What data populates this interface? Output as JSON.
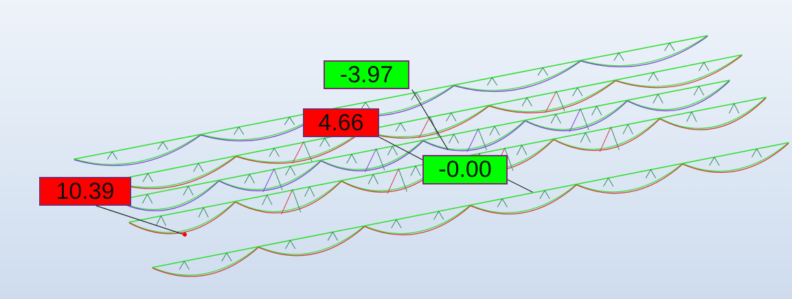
{
  "labels": {
    "top": {
      "value": "-3.97",
      "color": "#00ff00"
    },
    "mid": {
      "value": "4.66",
      "color": "#ff0000"
    },
    "center": {
      "value": "-0.00",
      "color": "#00ff00"
    },
    "left": {
      "value": "10.39",
      "color": "#ff0000"
    }
  },
  "colors": {
    "chord": "#33dd33",
    "web": "#2e8b57",
    "deformed_compression": "#7b3fd6",
    "deformed_tension": "#d63a3a",
    "leader": "#222222",
    "node_marker": "#ff0000"
  }
}
